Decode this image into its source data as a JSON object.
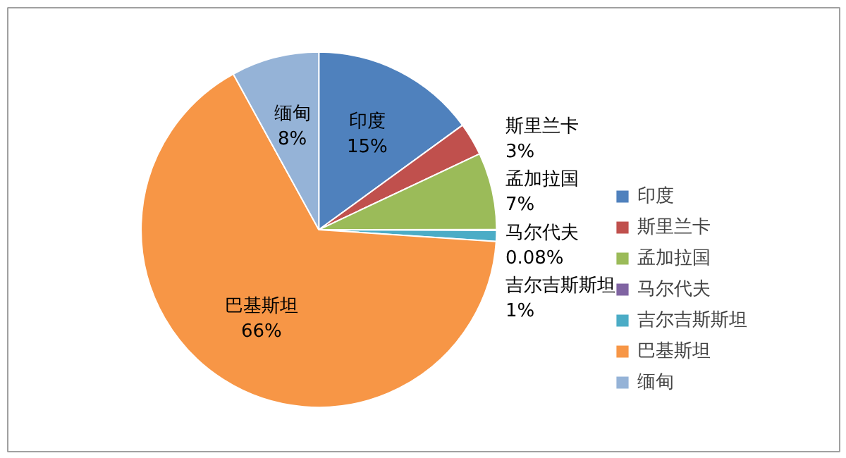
{
  "chart_data": {
    "type": "pie",
    "categories": [
      "印度",
      "斯里兰卡",
      "孟加拉国",
      "马尔代夫",
      "吉尔吉斯斯坦",
      "巴基斯坦",
      "缅甸"
    ],
    "values": [
      15,
      3,
      7,
      0.08,
      1,
      66,
      8
    ],
    "value_labels": [
      "15%",
      "3%",
      "7%",
      "0.08%",
      "1%",
      "66%",
      "8%"
    ],
    "colors": [
      "#4f81bd",
      "#c0504d",
      "#9bbb59",
      "#8064a2",
      "#4bacc6",
      "#f79646",
      "#95b3d7"
    ],
    "legend": "right"
  }
}
